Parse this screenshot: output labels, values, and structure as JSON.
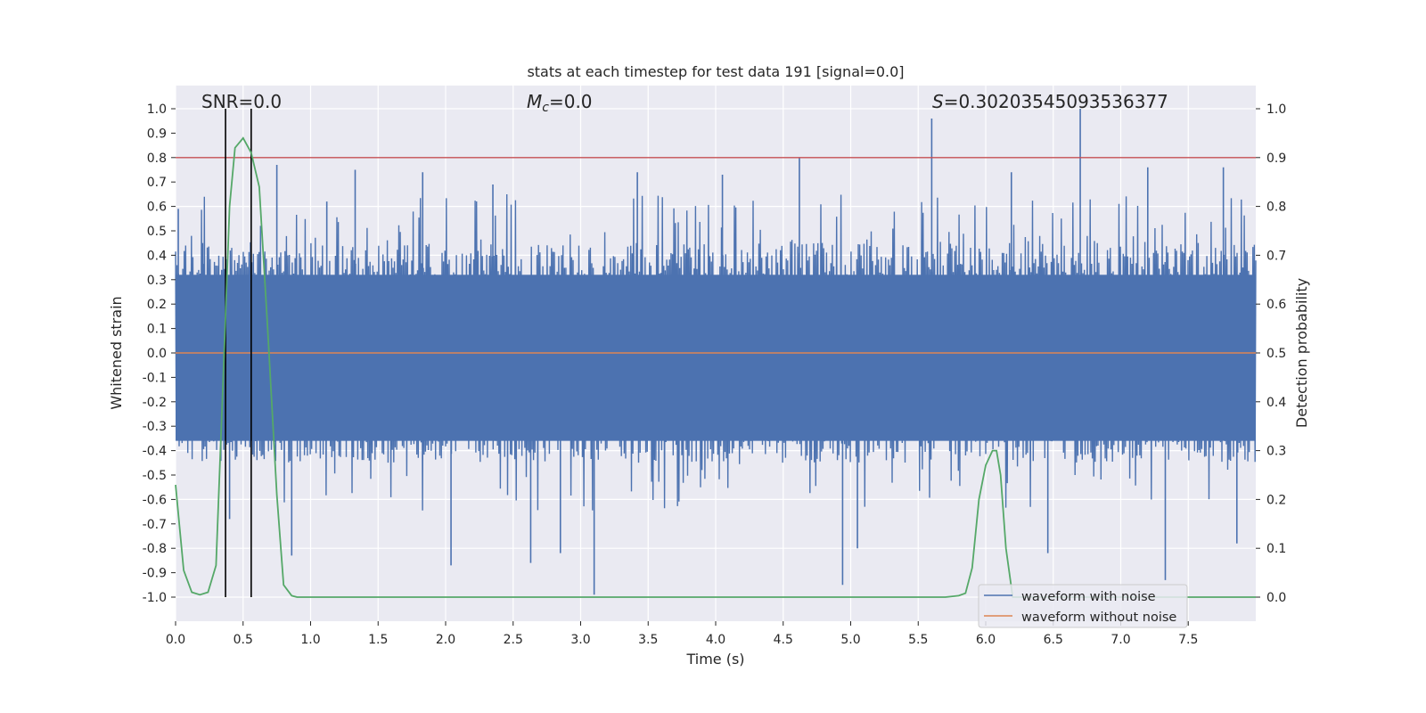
{
  "chart_data": {
    "type": "line",
    "title": "stats at each timestep for test data 191 [signal=0.0]",
    "xlabel": "Time (s)",
    "ylabel": "Whitened strain",
    "y2label": "Detection probability",
    "xlim": [
      0.0,
      8.0
    ],
    "ylim": [
      -1.1,
      1.1
    ],
    "y2lim": [
      -0.05,
      1.05
    ],
    "xticks": [
      "0.0",
      "0.5",
      "1.0",
      "1.5",
      "2.0",
      "2.5",
      "3.0",
      "3.5",
      "4.0",
      "4.5",
      "5.0",
      "5.5",
      "6.0",
      "6.5",
      "7.0",
      "7.5"
    ],
    "yticks": [
      "1.0",
      "0.9",
      "0.8",
      "0.7",
      "0.6",
      "0.5",
      "0.4",
      "0.3",
      "0.2",
      "0.1",
      "0.0",
      "-0.1",
      "-0.2",
      "-0.3",
      "-0.4",
      "-0.5",
      "-0.6",
      "-0.7",
      "-0.8",
      "-0.9",
      "-1.0"
    ],
    "y2ticks": [
      "1.0",
      "0.9",
      "0.8",
      "0.7",
      "0.6",
      "0.5",
      "0.4",
      "0.3",
      "0.2",
      "0.1",
      "0.0"
    ],
    "annotations": {
      "snr": "SNR=0.0",
      "mc_symbol": "M",
      "mc_sub": "c",
      "mc_value": "=0.0",
      "s_symbol": "S",
      "s_value": "=0.30203545093536377"
    },
    "threshold": {
      "value": 0.9,
      "axis": "right",
      "color": "#c44e52"
    },
    "vlines": [
      0.37,
      0.56
    ],
    "noise_spikes": [
      {
        "x": 0.02,
        "v": 0.59
      },
      {
        "x": 0.2,
        "v": 0.45
      },
      {
        "x": 0.4,
        "v": -0.68
      },
      {
        "x": 0.75,
        "v": 0.77
      },
      {
        "x": 0.86,
        "v": -0.83
      },
      {
        "x": 1.12,
        "v": 0.62
      },
      {
        "x": 1.33,
        "v": 0.75
      },
      {
        "x": 1.83,
        "v": 0.74
      },
      {
        "x": 2.04,
        "v": -0.87
      },
      {
        "x": 2.35,
        "v": 0.69
      },
      {
        "x": 2.63,
        "v": -0.86
      },
      {
        "x": 2.85,
        "v": -0.82
      },
      {
        "x": 3.1,
        "v": -0.99
      },
      {
        "x": 3.42,
        "v": 0.74
      },
      {
        "x": 4.05,
        "v": 0.73
      },
      {
        "x": 4.62,
        "v": 0.8
      },
      {
        "x": 4.94,
        "v": -0.95
      },
      {
        "x": 5.05,
        "v": -0.8
      },
      {
        "x": 5.6,
        "v": 0.96
      },
      {
        "x": 6.19,
        "v": 0.74
      },
      {
        "x": 6.46,
        "v": -0.82
      },
      {
        "x": 6.7,
        "v": 1.0
      },
      {
        "x": 7.2,
        "v": 0.76
      },
      {
        "x": 7.33,
        "v": -0.93
      },
      {
        "x": 7.76,
        "v": 0.76
      },
      {
        "x": 7.86,
        "v": -0.78
      }
    ],
    "series": [
      {
        "name": "waveform with noise",
        "color": "#4c72b0",
        "envelope": 0.45
      },
      {
        "name": "waveform without noise",
        "color": "#dd8452",
        "values_constant": 0.0
      },
      {
        "name": "detection probability",
        "color": "#55a868",
        "axis": "right",
        "x": [
          0.0,
          0.06,
          0.12,
          0.18,
          0.24,
          0.3,
          0.36,
          0.4,
          0.44,
          0.5,
          0.56,
          0.62,
          0.68,
          0.75,
          0.8,
          0.86,
          0.9,
          5.7,
          5.8,
          5.85,
          5.9,
          5.95,
          6.0,
          6.05,
          6.08,
          6.11,
          6.15,
          6.2,
          6.3,
          8.0
        ],
        "values": [
          0.23,
          0.055,
          0.01,
          0.005,
          0.01,
          0.065,
          0.5,
          0.8,
          0.92,
          0.94,
          0.91,
          0.84,
          0.56,
          0.21,
          0.025,
          0.003,
          0.0,
          0.0,
          0.003,
          0.008,
          0.06,
          0.2,
          0.27,
          0.3,
          0.3,
          0.25,
          0.1,
          0.0,
          0.0,
          0.0
        ]
      }
    ],
    "legend": {
      "placement": "lower-right",
      "entries": [
        "waveform with noise",
        "waveform without noise"
      ]
    }
  }
}
